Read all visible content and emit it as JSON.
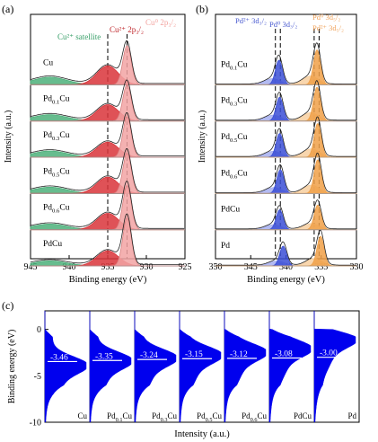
{
  "chart_data": [
    {
      "panel": "(a)",
      "type": "line",
      "subtype": "stacked XPS spectra with fitted peaks",
      "xlabel": "Binding energy (eV)",
      "ylabel": "Intensity (a.u.)",
      "xlim": [
        945,
        925
      ],
      "x_inverted": true,
      "xticks": [
        "945",
        "940",
        "935",
        "930",
        "925"
      ],
      "xtick_values": [
        945,
        940,
        935,
        930,
        925
      ],
      "reference_lines_eV": [
        935.0,
        932.5
      ],
      "annotations": [
        {
          "text": "Cu²⁺ 2p₃/₂",
          "color": "#c0282d"
        },
        {
          "text": "Cu⁰ 2p₃/₂",
          "color": "#f3a4a0"
        },
        {
          "text": "Cu²⁺ satellite",
          "color": "#3aa06a"
        }
      ],
      "colors": {
        "cu0": "#f2a3a3",
        "cu2": "#d9343a",
        "satellite": "#4cb07a",
        "envelope": "#222222",
        "raw": "#9a9a9a"
      },
      "samples": [
        "Cu",
        "Pd0.1Cu",
        "Pd0.3Cu",
        "Pd0.5Cu",
        "Pd0.6Cu",
        "PdCu"
      ],
      "sample_labels": [
        {
          "base": "Cu",
          "sub": "",
          "tail": ""
        },
        {
          "base": "Pd",
          "sub": "0.1",
          "tail": "Cu"
        },
        {
          "base": "Pd",
          "sub": "0.3",
          "tail": "Cu"
        },
        {
          "base": "Pd",
          "sub": "0.5",
          "tail": "Cu"
        },
        {
          "base": "Pd",
          "sub": "0.6",
          "tail": "Cu"
        },
        {
          "base": "PdCu",
          "sub": "",
          "tail": ""
        }
      ],
      "series": [
        {
          "cu0_center": 932.5,
          "cu0_height": 0.62,
          "cu2_center": 935.0,
          "cu2_height": 0.3,
          "sat_center": 942.5,
          "sat_height": 0.12
        },
        {
          "cu0_center": 932.5,
          "cu0_height": 0.58,
          "cu2_center": 935.0,
          "cu2_height": 0.26,
          "sat_center": 942.5,
          "sat_height": 0.1
        },
        {
          "cu0_center": 932.5,
          "cu0_height": 0.64,
          "cu2_center": 935.0,
          "cu2_height": 0.24,
          "sat_center": 942.5,
          "sat_height": 0.1
        },
        {
          "cu0_center": 932.5,
          "cu0_height": 0.64,
          "cu2_center": 935.0,
          "cu2_height": 0.26,
          "sat_center": 942.5,
          "sat_height": 0.1
        },
        {
          "cu0_center": 932.5,
          "cu0_height": 0.7,
          "cu2_center": 935.0,
          "cu2_height": 0.26,
          "sat_center": 942.5,
          "sat_height": 0.09
        },
        {
          "cu0_center": 932.5,
          "cu0_height": 0.76,
          "cu2_center": 935.0,
          "cu2_height": 0.24,
          "sat_center": 942.5,
          "sat_height": 0.08
        }
      ]
    },
    {
      "panel": "(b)",
      "type": "line",
      "subtype": "stacked XPS spectra with fitted peaks",
      "xlabel": "Binding energy (eV)",
      "ylabel": "Intensity (a.u.)",
      "xlim": [
        350,
        330
      ],
      "x_inverted": true,
      "xticks": [
        "350",
        "345",
        "340",
        "335",
        "330"
      ],
      "xtick_values": [
        350,
        345,
        340,
        335,
        330
      ],
      "reference_lines_eV": [
        341.5,
        340.8,
        336.0,
        335.3
      ],
      "annotations": [
        {
          "text": "Pd²⁺ 3d₃/₂",
          "color": "#4a5bd0"
        },
        {
          "text": "Pd⁰ 3d₃/₂",
          "color": "#4a5bd0"
        },
        {
          "text": "Pd⁰ 3d₅/₂",
          "color": "#f0a35c"
        },
        {
          "text": "Pd²⁺ 3d₅/₂",
          "color": "#f0a35c"
        }
      ],
      "colors": {
        "pd0_32": "#3b4fd6",
        "pd2_32": "#a6aff0",
        "pd0_52": "#f0a048",
        "pd2_52": "#f7cfa0",
        "envelope": "#222222",
        "raw": "#9a9a9a"
      },
      "samples": [
        "Pd0.1Cu",
        "Pd0.3Cu",
        "Pd0.5Cu",
        "Pd0.6Cu",
        "PdCu",
        "Pd"
      ],
      "sample_labels": [
        {
          "base": "Pd",
          "sub": "0.1",
          "tail": "Cu"
        },
        {
          "base": "Pd",
          "sub": "0.3",
          "tail": "Cu"
        },
        {
          "base": "Pd",
          "sub": "0.5",
          "tail": "Cu"
        },
        {
          "base": "Pd",
          "sub": "0.6",
          "tail": "Cu"
        },
        {
          "base": "PdCu",
          "sub": "",
          "tail": ""
        },
        {
          "base": "Pd",
          "sub": "",
          "tail": ""
        }
      ],
      "series": [
        {
          "p32_center": 341.0,
          "p32_height": 0.62,
          "p52_center": 335.6,
          "p52_height": 0.88
        },
        {
          "p32_center": 340.9,
          "p32_height": 0.6,
          "p52_center": 335.6,
          "p52_height": 0.85
        },
        {
          "p32_center": 340.9,
          "p32_height": 0.6,
          "p52_center": 335.5,
          "p52_height": 0.85
        },
        {
          "p32_center": 340.8,
          "p32_height": 0.6,
          "p52_center": 335.5,
          "p52_height": 0.85
        },
        {
          "p32_center": 340.9,
          "p32_height": 0.5,
          "p52_center": 335.5,
          "p52_height": 0.62
        },
        {
          "p32_center": 340.4,
          "p32_height": 0.5,
          "p52_center": 335.1,
          "p52_height": 0.75
        }
      ]
    },
    {
      "panel": "(c)",
      "type": "area",
      "subtype": "UPS valence band / d-band density of states",
      "xlabel": "Intensity (a.u.)",
      "ylabel": "Binding energy (eV)",
      "ylim": [
        -10,
        2
      ],
      "yticks": [
        "0",
        "-5",
        "-10"
      ],
      "ytick_values": [
        0,
        -5,
        -10
      ],
      "fill_color": "#0000ee",
      "marker_color": "#ffffff",
      "samples": [
        "Cu",
        "Pd0.1Cu",
        "Pd0.3Cu",
        "Pd0.5Cu",
        "Pd0.6Cu",
        "PdCu",
        "Pd"
      ],
      "sample_labels": [
        {
          "base": "Cu",
          "sub": "",
          "tail": ""
        },
        {
          "base": "Pd",
          "sub": "0.1",
          "tail": "Cu"
        },
        {
          "base": "Pd",
          "sub": "0.3",
          "tail": "Cu"
        },
        {
          "base": "Pd",
          "sub": "0.5",
          "tail": "Cu"
        },
        {
          "base": "Pd",
          "sub": "0.6",
          "tail": "Cu"
        },
        {
          "base": "PdCu",
          "sub": "",
          "tail": ""
        },
        {
          "base": "Pd",
          "sub": "",
          "tail": ""
        }
      ],
      "d_band_centers": [
        -3.46,
        -3.35,
        -3.24,
        -3.15,
        -3.12,
        -3.08,
        -3.0
      ],
      "d_band_labels": [
        "-3.46",
        "-3.35",
        "-3.24",
        "-3.15",
        "-3.12",
        "-3.08",
        "-3.00"
      ],
      "peak_positions_eV": [
        -3.8,
        -3.3,
        -3.0,
        -2.7,
        -2.4,
        -2.0,
        -1.0
      ]
    }
  ]
}
